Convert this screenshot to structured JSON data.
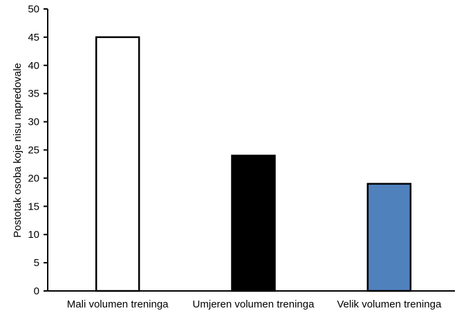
{
  "chart_data": {
    "type": "bar",
    "categories": [
      "Mali volumen treninga",
      "Umjeren volumen treninga",
      "Velik volumen treninga"
    ],
    "values": [
      45,
      24,
      19
    ],
    "bar_colors": [
      "#ffffff",
      "#000000",
      "#4f81bd"
    ],
    "title": "",
    "xlabel": "",
    "ylabel": "Postotak osoba koje nisu napredovale",
    "ylim": [
      0,
      50
    ],
    "yticks": [
      0,
      5,
      10,
      15,
      20,
      25,
      30,
      35,
      40,
      45,
      50
    ],
    "grid": false,
    "legend": "none"
  }
}
